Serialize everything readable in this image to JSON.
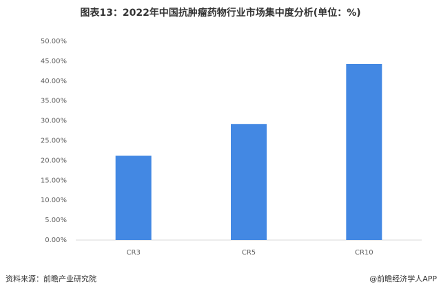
{
  "chart_data": {
    "type": "bar",
    "title": "图表13：2022年中国抗肿瘤药物行业市场集中度分析(单位：%)",
    "categories": [
      "CR3",
      "CR5",
      "CR10"
    ],
    "values": [
      21.2,
      29.2,
      44.3
    ],
    "color": "#4388e3",
    "ylim": [
      0,
      50
    ],
    "yticks": [
      {
        "value": 0,
        "label": "0.00%"
      },
      {
        "value": 5,
        "label": "5.00%"
      },
      {
        "value": 10,
        "label": "10.00%"
      },
      {
        "value": 15,
        "label": "15.00%"
      },
      {
        "value": 20,
        "label": "20.00%"
      },
      {
        "value": 25,
        "label": "25.00%"
      },
      {
        "value": 30,
        "label": "30.00%"
      },
      {
        "value": 35,
        "label": "35.00%"
      },
      {
        "value": 40,
        "label": "40.00%"
      },
      {
        "value": 45,
        "label": "45.00%"
      },
      {
        "value": 50,
        "label": "50.00%"
      }
    ],
    "grid": false,
    "source": "资料来源：前瞻产业研究院",
    "credit": "@前瞻经济学人APP"
  }
}
